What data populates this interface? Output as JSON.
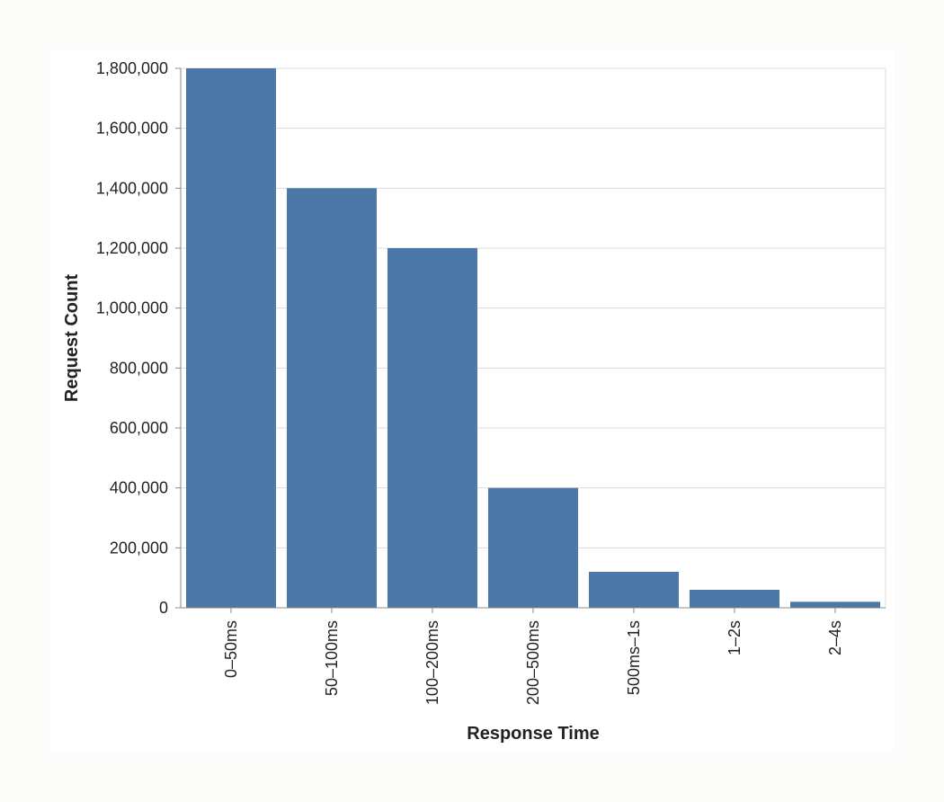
{
  "chart_data": {
    "type": "bar",
    "title": "",
    "xlabel": "Response Time",
    "ylabel": "Request Count",
    "categories": [
      "0–50ms",
      "50–100ms",
      "100–200ms",
      "200–500ms",
      "500ms–1s",
      "1–2s",
      "2–4s"
    ],
    "values": [
      1800000,
      1400000,
      1200000,
      400000,
      120000,
      60000,
      20000
    ],
    "ylim": [
      0,
      1800000
    ],
    "yticks": [
      0,
      200000,
      400000,
      600000,
      800000,
      1000000,
      1200000,
      1400000,
      1600000,
      1800000
    ],
    "ytick_labels": [
      "0",
      "200,000",
      "400,000",
      "600,000",
      "800,000",
      "1,000,000",
      "1,200,000",
      "1,400,000",
      "1,600,000",
      "1,800,000"
    ],
    "grid": true,
    "bar_color": "#4c78a8",
    "grid_color": "#dddddd",
    "axis_color": "#888888"
  }
}
